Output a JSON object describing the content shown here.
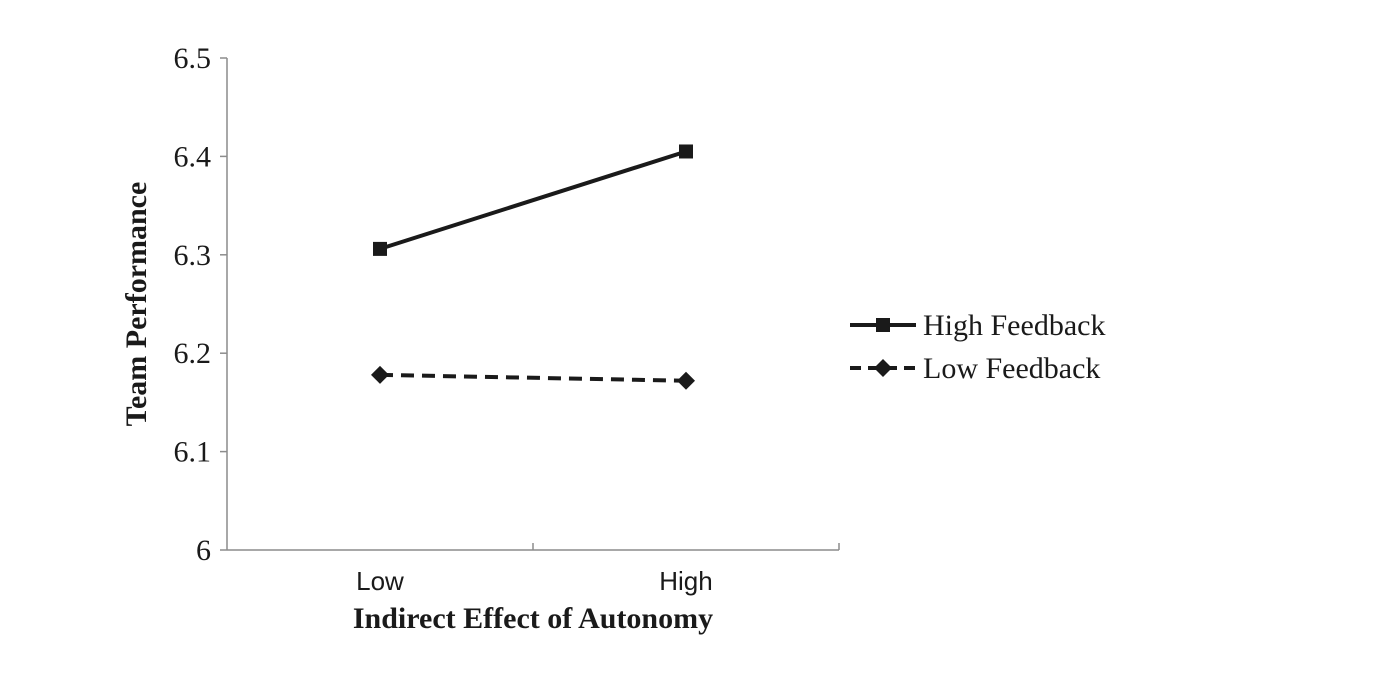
{
  "chart_data": {
    "type": "line",
    "title": "",
    "xlabel": "Indirect Effect of Autonomy",
    "ylabel": "Team Performance",
    "categories": [
      "Low",
      "High"
    ],
    "ylim": [
      6,
      6.5
    ],
    "yticks": [
      "6",
      "6.1",
      "6.2",
      "6.3",
      "6.4",
      "6.5"
    ],
    "grid": false,
    "legend_position": "right",
    "series": [
      {
        "name": "High Feedback",
        "values": [
          6.306,
          6.405
        ],
        "line_style": "solid",
        "marker": "square",
        "color": "#1a1a1a"
      },
      {
        "name": "Low Feedback",
        "values": [
          6.178,
          6.172
        ],
        "line_style": "dashed",
        "marker": "diamond",
        "color": "#1a1a1a"
      }
    ]
  }
}
